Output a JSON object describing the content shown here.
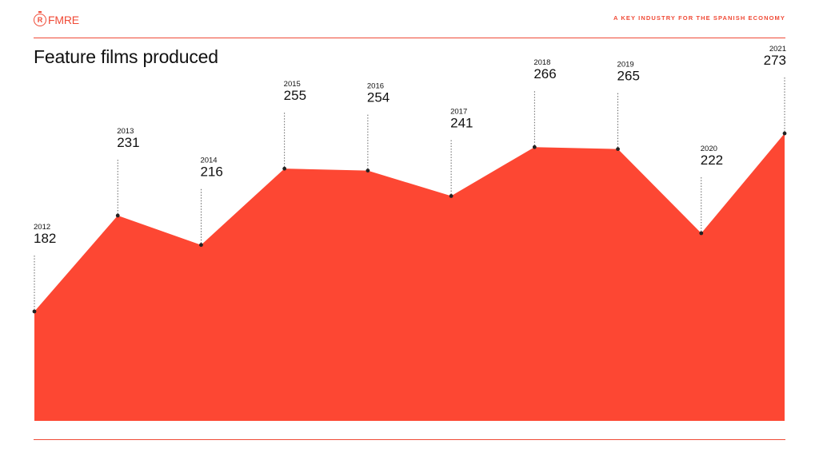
{
  "header": {
    "logo_text": "FMRE",
    "logo_mark": "R",
    "tagline": "A KEY INDUSTRY FOR THE SPANISH ECONOMY"
  },
  "colors": {
    "accent": "#f04a36",
    "area_fill": "#fd4733",
    "text": "#111111"
  },
  "chart_data": {
    "type": "area",
    "title": "Feature films produced",
    "x": [
      "2012",
      "2013",
      "2014",
      "2015",
      "2016",
      "2017",
      "2018",
      "2019",
      "2020",
      "2021"
    ],
    "series": [
      {
        "values": [
          182,
          231,
          216,
          255,
          254,
          241,
          266,
          265,
          222,
          273
        ]
      }
    ],
    "data_labels": true,
    "xlabel": "",
    "ylabel": "",
    "grid": false,
    "legend": "none"
  }
}
